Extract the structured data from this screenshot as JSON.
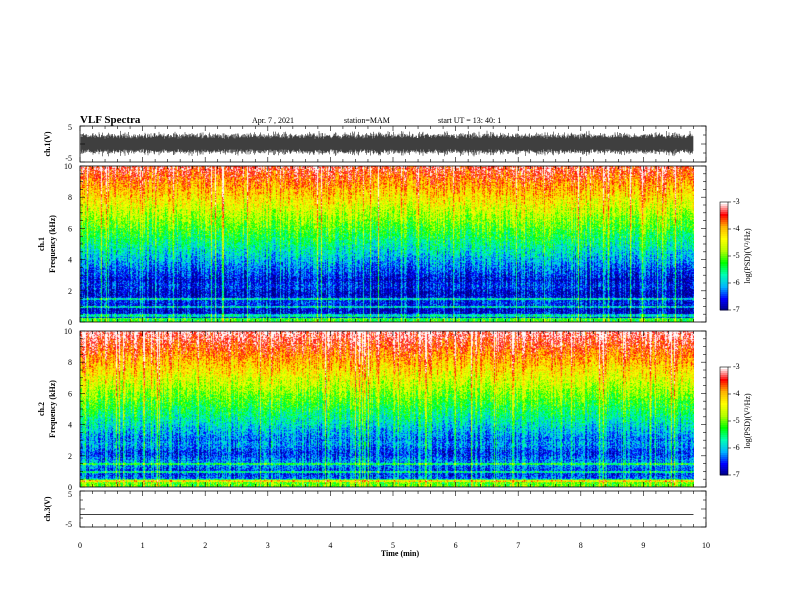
{
  "header": {
    "title": "VLF Spectra",
    "date": "Apr. 7 , 2021",
    "station": "station=MAM",
    "start": "start UT = 13: 40: 1"
  },
  "colormap": {
    "stops": [
      "#00007f",
      "#0000ff",
      "#00b4ff",
      "#00ffb4",
      "#00ff00",
      "#b4ff00",
      "#ffff00",
      "#ffb400",
      "#ff0000",
      "#ffffff"
    ]
  },
  "chart_data": [
    {
      "type": "line",
      "name": "ch1-waveform",
      "ylabel": "ch.1(V)",
      "ylim": [
        -5,
        5
      ],
      "yticks": [
        "5",
        "-5"
      ],
      "xlim": [
        0,
        10
      ],
      "description_values": {
        "amplitude_min": -3,
        "amplitude_max": 3,
        "data_end_min": 9.8
      }
    },
    {
      "type": "heatmap",
      "name": "ch1-spectrogram",
      "ylabel": "ch.1\nFrequency (kHz)",
      "ylim": [
        0,
        10
      ],
      "yticks": [
        "0",
        "2",
        "4",
        "6",
        "8",
        "10"
      ],
      "xlim": [
        0,
        10
      ],
      "data_end_min": 9.8,
      "colorbar": {
        "label": "log(PSD)(V²/Hz)",
        "range": [
          -7,
          -3
        ],
        "ticks": [
          "-3",
          "-4",
          "-5",
          "-6",
          "-7"
        ]
      }
    },
    {
      "type": "heatmap",
      "name": "ch2-spectrogram",
      "ylabel": "ch.2\nFrequency (kHz)",
      "ylim": [
        0,
        10
      ],
      "yticks": [
        "0",
        "2",
        "4",
        "6",
        "8",
        "10"
      ],
      "xlim": [
        0,
        10
      ],
      "data_end_min": 9.8,
      "colorbar": {
        "label": "log(PSD)(V²/Hz)",
        "range": [
          -7,
          -3
        ],
        "ticks": [
          "-3",
          "-4",
          "-5",
          "-6",
          "-7"
        ]
      }
    },
    {
      "type": "line",
      "name": "ch3-waveform",
      "ylabel": "ch.3(V)",
      "ylim": [
        -5,
        5
      ],
      "yticks": [
        "5",
        "-5"
      ],
      "xlim": [
        0,
        10
      ],
      "description_values": {
        "constant_value": -1.5,
        "data_end_min": 9.8
      }
    }
  ],
  "x_axis": {
    "label": "Time (min)",
    "ticks": [
      "0",
      "1",
      "2",
      "3",
      "4",
      "5",
      "6",
      "7",
      "8",
      "9",
      "10"
    ]
  }
}
